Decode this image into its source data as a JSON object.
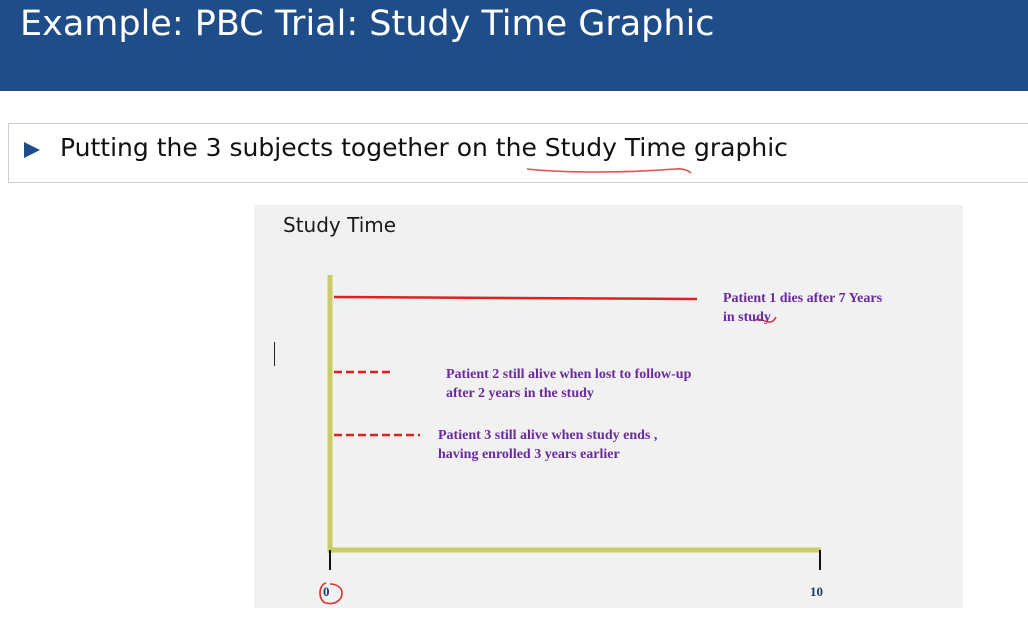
{
  "slide": {
    "title": "Example: PBC Trial: Study Time Graphic",
    "bullet": "Putting the 3 subjects together on the Study Time graphic"
  },
  "diagram": {
    "title": "Study Time",
    "x_ticks": [
      "0",
      "10"
    ],
    "patients": [
      {
        "line1": "Patient 1 dies after 7 Years",
        "line2": "in study",
        "years": 7,
        "line_style": "solid"
      },
      {
        "line1": "Patient 2 still alive when lost to follow-up",
        "line2": "after 2 years in the study",
        "years": 2,
        "line_style": "dashed"
      },
      {
        "line1": "Patient 3 still alive when study ends ,",
        "line2": "having enrolled 3 years earlier",
        "years": 3,
        "line_style": "dashed"
      }
    ]
  },
  "colors": {
    "header": "#1e4d8a",
    "axis": "#cccc66",
    "patient_line": "#e02020",
    "annotation": "#6a2a9e",
    "ink": "#e03030"
  }
}
